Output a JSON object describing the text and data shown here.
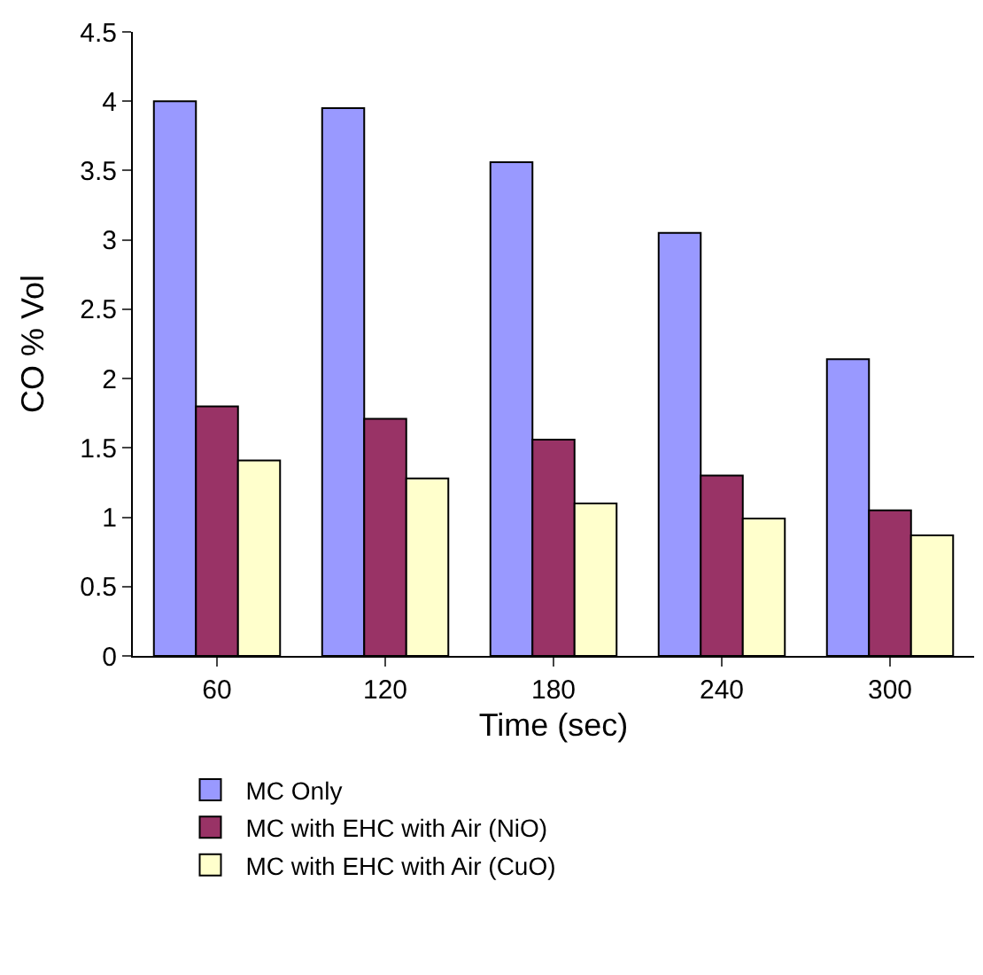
{
  "chart_data": {
    "type": "bar",
    "xlabel": "Time (sec)",
    "ylabel": "CO % Vol",
    "categories": [
      "60",
      "120",
      "180",
      "240",
      "300"
    ],
    "series": [
      {
        "name": "MC Only",
        "color": "#9999ff",
        "values": [
          4.0,
          3.95,
          3.56,
          3.05,
          2.14
        ]
      },
      {
        "name": "MC with EHC with Air (NiO)",
        "color": "#993366",
        "values": [
          1.8,
          1.71,
          1.56,
          1.3,
          1.05
        ]
      },
      {
        "name": "MC with EHC with Air (CuO)",
        "color": "#ffffcc",
        "values": [
          1.41,
          1.28,
          1.1,
          0.99,
          0.87
        ]
      }
    ],
    "ylim": [
      0,
      4.5
    ],
    "yticks": [
      0,
      0.5,
      1,
      1.5,
      2,
      2.5,
      3,
      3.5,
      4,
      4.5
    ],
    "grid": false,
    "legend": "bottom"
  }
}
